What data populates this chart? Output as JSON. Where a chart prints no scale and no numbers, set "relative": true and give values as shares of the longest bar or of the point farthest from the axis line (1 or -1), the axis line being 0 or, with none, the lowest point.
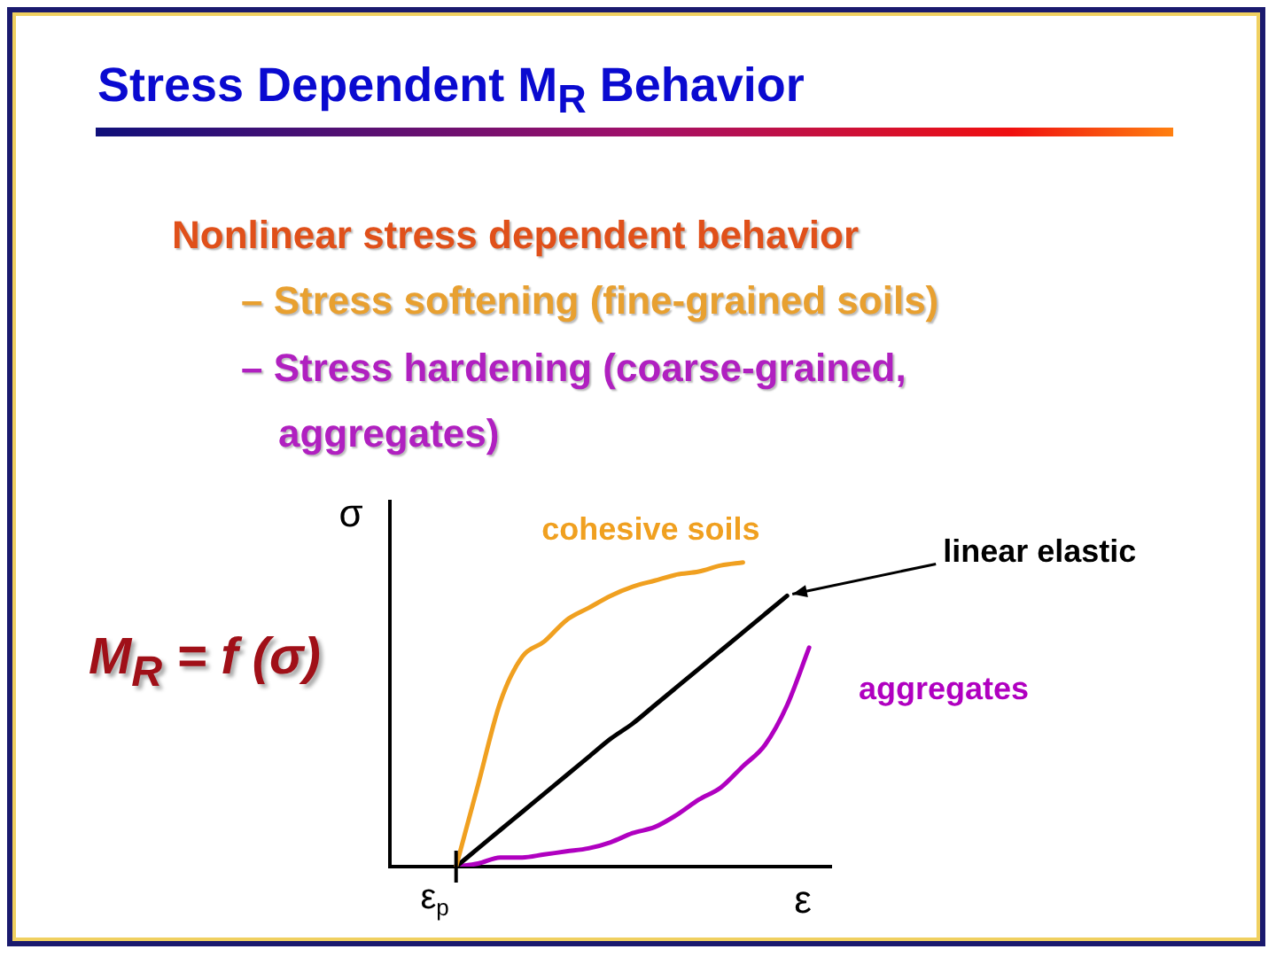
{
  "chart_data": {
    "type": "line",
    "title": "Stress Dependent M$_{R}$ Behavior",
    "xlabel": "ε",
    "ylabel": "σ",
    "relative": true,
    "annotations": [
      "Nonlinear stress dependent behavior",
      "– Stress softening (fine-grained soils)",
      "– Stress hardening (coarse-grained, aggregates)",
      "M$_{R}$ = f (σ)",
      "ε$_{p}$"
    ],
    "categories": [
      null,
      null,
      null,
      null,
      null,
      null,
      null,
      null,
      null,
      null,
      null,
      null,
      null,
      null,
      null,
      null,
      null,
      null,
      null,
      null,
      null
    ],
    "series": [
      {
        "name": "cohesive soils",
        "color": "#f0a020",
        "values": [
          null,
          null,
          null,
          0,
          0.27,
          0.54,
          0.69,
          0.74,
          0.81,
          0.85,
          0.89,
          0.92,
          0.94,
          0.96,
          0.97,
          0.99,
          1,
          null,
          null,
          null,
          null
        ]
      },
      {
        "name": "linear elastic",
        "color": "#000000",
        "values": [
          null,
          null,
          null,
          0,
          0.06,
          0.12,
          0.18,
          0.24,
          0.3,
          0.36,
          0.42,
          0.47,
          0.53,
          0.59,
          0.65,
          0.71,
          0.77,
          0.83,
          0.89,
          null,
          null
        ]
      },
      {
        "name": "aggregates",
        "color": "#b000c0",
        "values": [
          null,
          null,
          null,
          0,
          0.01,
          0.03,
          0.03,
          0.04,
          0.05,
          0.06,
          0.08,
          0.11,
          0.13,
          0.17,
          0.22,
          0.26,
          0.33,
          0.4,
          0.53,
          0.72,
          null
        ]
      }
    ]
  }
}
